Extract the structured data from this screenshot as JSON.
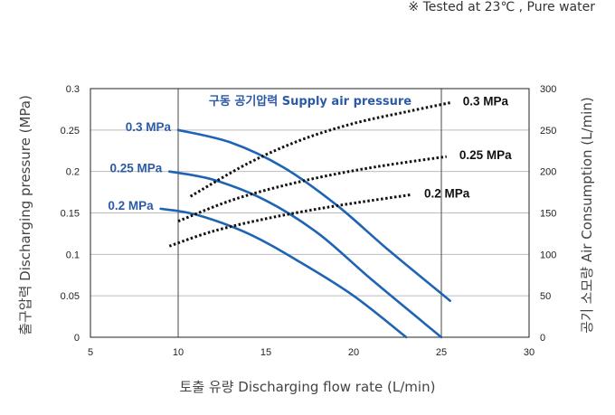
{
  "note": "※ Tested at 23℃ , Pure water",
  "chart_data": {
    "type": "line",
    "xlabel": "토출 유량 Discharging flow rate (L/min)",
    "ylabel": "출구압력 Discharging pressure (MPa)",
    "y2label": "공기 소모량 Air Consumption (L/min)",
    "legend_title": "구동 공기압력 Supply air pressure",
    "xlim": [
      5,
      30
    ],
    "ylim": [
      0,
      0.3
    ],
    "y2lim": [
      0,
      300
    ],
    "x_ticks": [
      "5",
      "10",
      "15",
      "20",
      "25",
      "30"
    ],
    "y_ticks": [
      "0",
      "0.05",
      "0.1",
      "0.15",
      "0.2",
      "0.25",
      "0.3"
    ],
    "y2_ticks": [
      "0",
      "50",
      "100",
      "150",
      "200",
      "250",
      "300"
    ],
    "grid": true,
    "colors": {
      "discharge": "#1f64b4",
      "air": "#111111",
      "label_blue": "#2b5aa6",
      "grid": "#bbbbbb"
    },
    "discharge_series": [
      {
        "name": "0.3 MPa",
        "points": [
          [
            10,
            0.25
          ],
          [
            13,
            0.235
          ],
          [
            16,
            0.205
          ],
          [
            19,
            0.16
          ],
          [
            22,
            0.105
          ],
          [
            25.5,
            0.044
          ]
        ]
      },
      {
        "name": "0.25 MPa",
        "points": [
          [
            9.5,
            0.2
          ],
          [
            12,
            0.19
          ],
          [
            15,
            0.165
          ],
          [
            18,
            0.125
          ],
          [
            21,
            0.07
          ],
          [
            25,
            0.0
          ]
        ]
      },
      {
        "name": "0.2 MPa",
        "points": [
          [
            9,
            0.155
          ],
          [
            11,
            0.148
          ],
          [
            14,
            0.125
          ],
          [
            17,
            0.09
          ],
          [
            20,
            0.05
          ],
          [
            23,
            0.0
          ]
        ]
      }
    ],
    "air_series": [
      {
        "name": "0.3 MPa",
        "points": [
          [
            10.7,
            170
          ],
          [
            14,
            210
          ],
          [
            17,
            238
          ],
          [
            20,
            258
          ],
          [
            23,
            272
          ],
          [
            25.5,
            283
          ]
        ]
      },
      {
        "name": "0.25 MPa",
        "points": [
          [
            10,
            140
          ],
          [
            13,
            165
          ],
          [
            16,
            183
          ],
          [
            19,
            197
          ],
          [
            22,
            208
          ],
          [
            25.3,
            218
          ]
        ]
      },
      {
        "name": "0.2 MPa",
        "points": [
          [
            9.5,
            110
          ],
          [
            12,
            128
          ],
          [
            15,
            143
          ],
          [
            18,
            155
          ],
          [
            21,
            165
          ],
          [
            23.3,
            172
          ]
        ]
      }
    ]
  }
}
